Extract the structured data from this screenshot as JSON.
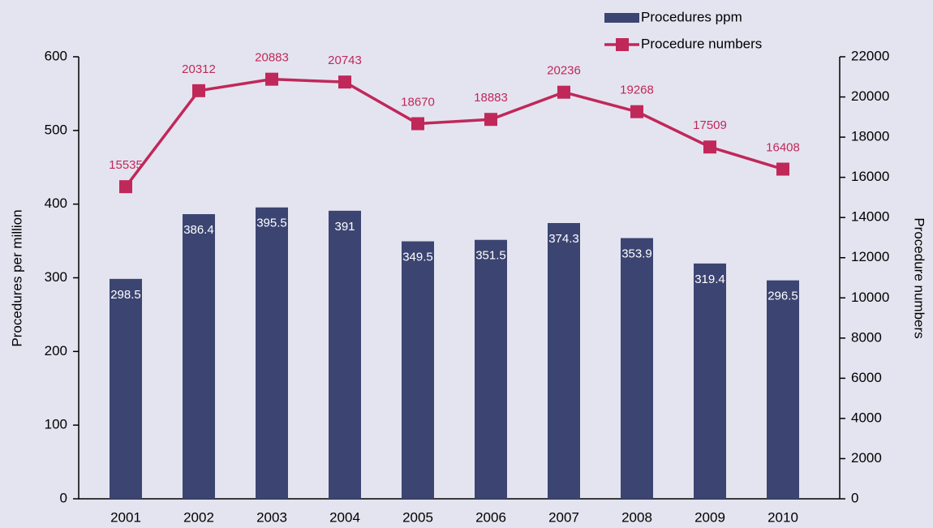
{
  "chart_data": {
    "type": "bar",
    "categories": [
      "2001",
      "2002",
      "2003",
      "2004",
      "2005",
      "2006",
      "2007",
      "2008",
      "2009",
      "2010"
    ],
    "series": [
      {
        "name": "Procedures ppm",
        "type": "bar",
        "color": "#3c4571",
        "axis": "y",
        "values": [
          298.5,
          386.4,
          395.5,
          391,
          349.5,
          351.5,
          374.3,
          353.9,
          319.4,
          296.5
        ]
      },
      {
        "name": "Procedure numbers",
        "type": "line",
        "color": "#c0285a",
        "axis": "y2",
        "values": [
          15535,
          20312,
          20883,
          20743,
          18670,
          18883,
          20236,
          19268,
          17509,
          16408
        ]
      }
    ],
    "ylabel": "Procedures per million",
    "y2label": "Procedure numbers",
    "ylim": [
      0,
      600
    ],
    "yticks": [
      0,
      100,
      200,
      300,
      400,
      500,
      600
    ],
    "y2lim": [
      0,
      22000
    ],
    "y2ticks": [
      0,
      2000,
      4000,
      6000,
      8000,
      10000,
      12000,
      14000,
      16000,
      18000,
      20000,
      22000
    ],
    "legend": "top-right"
  }
}
